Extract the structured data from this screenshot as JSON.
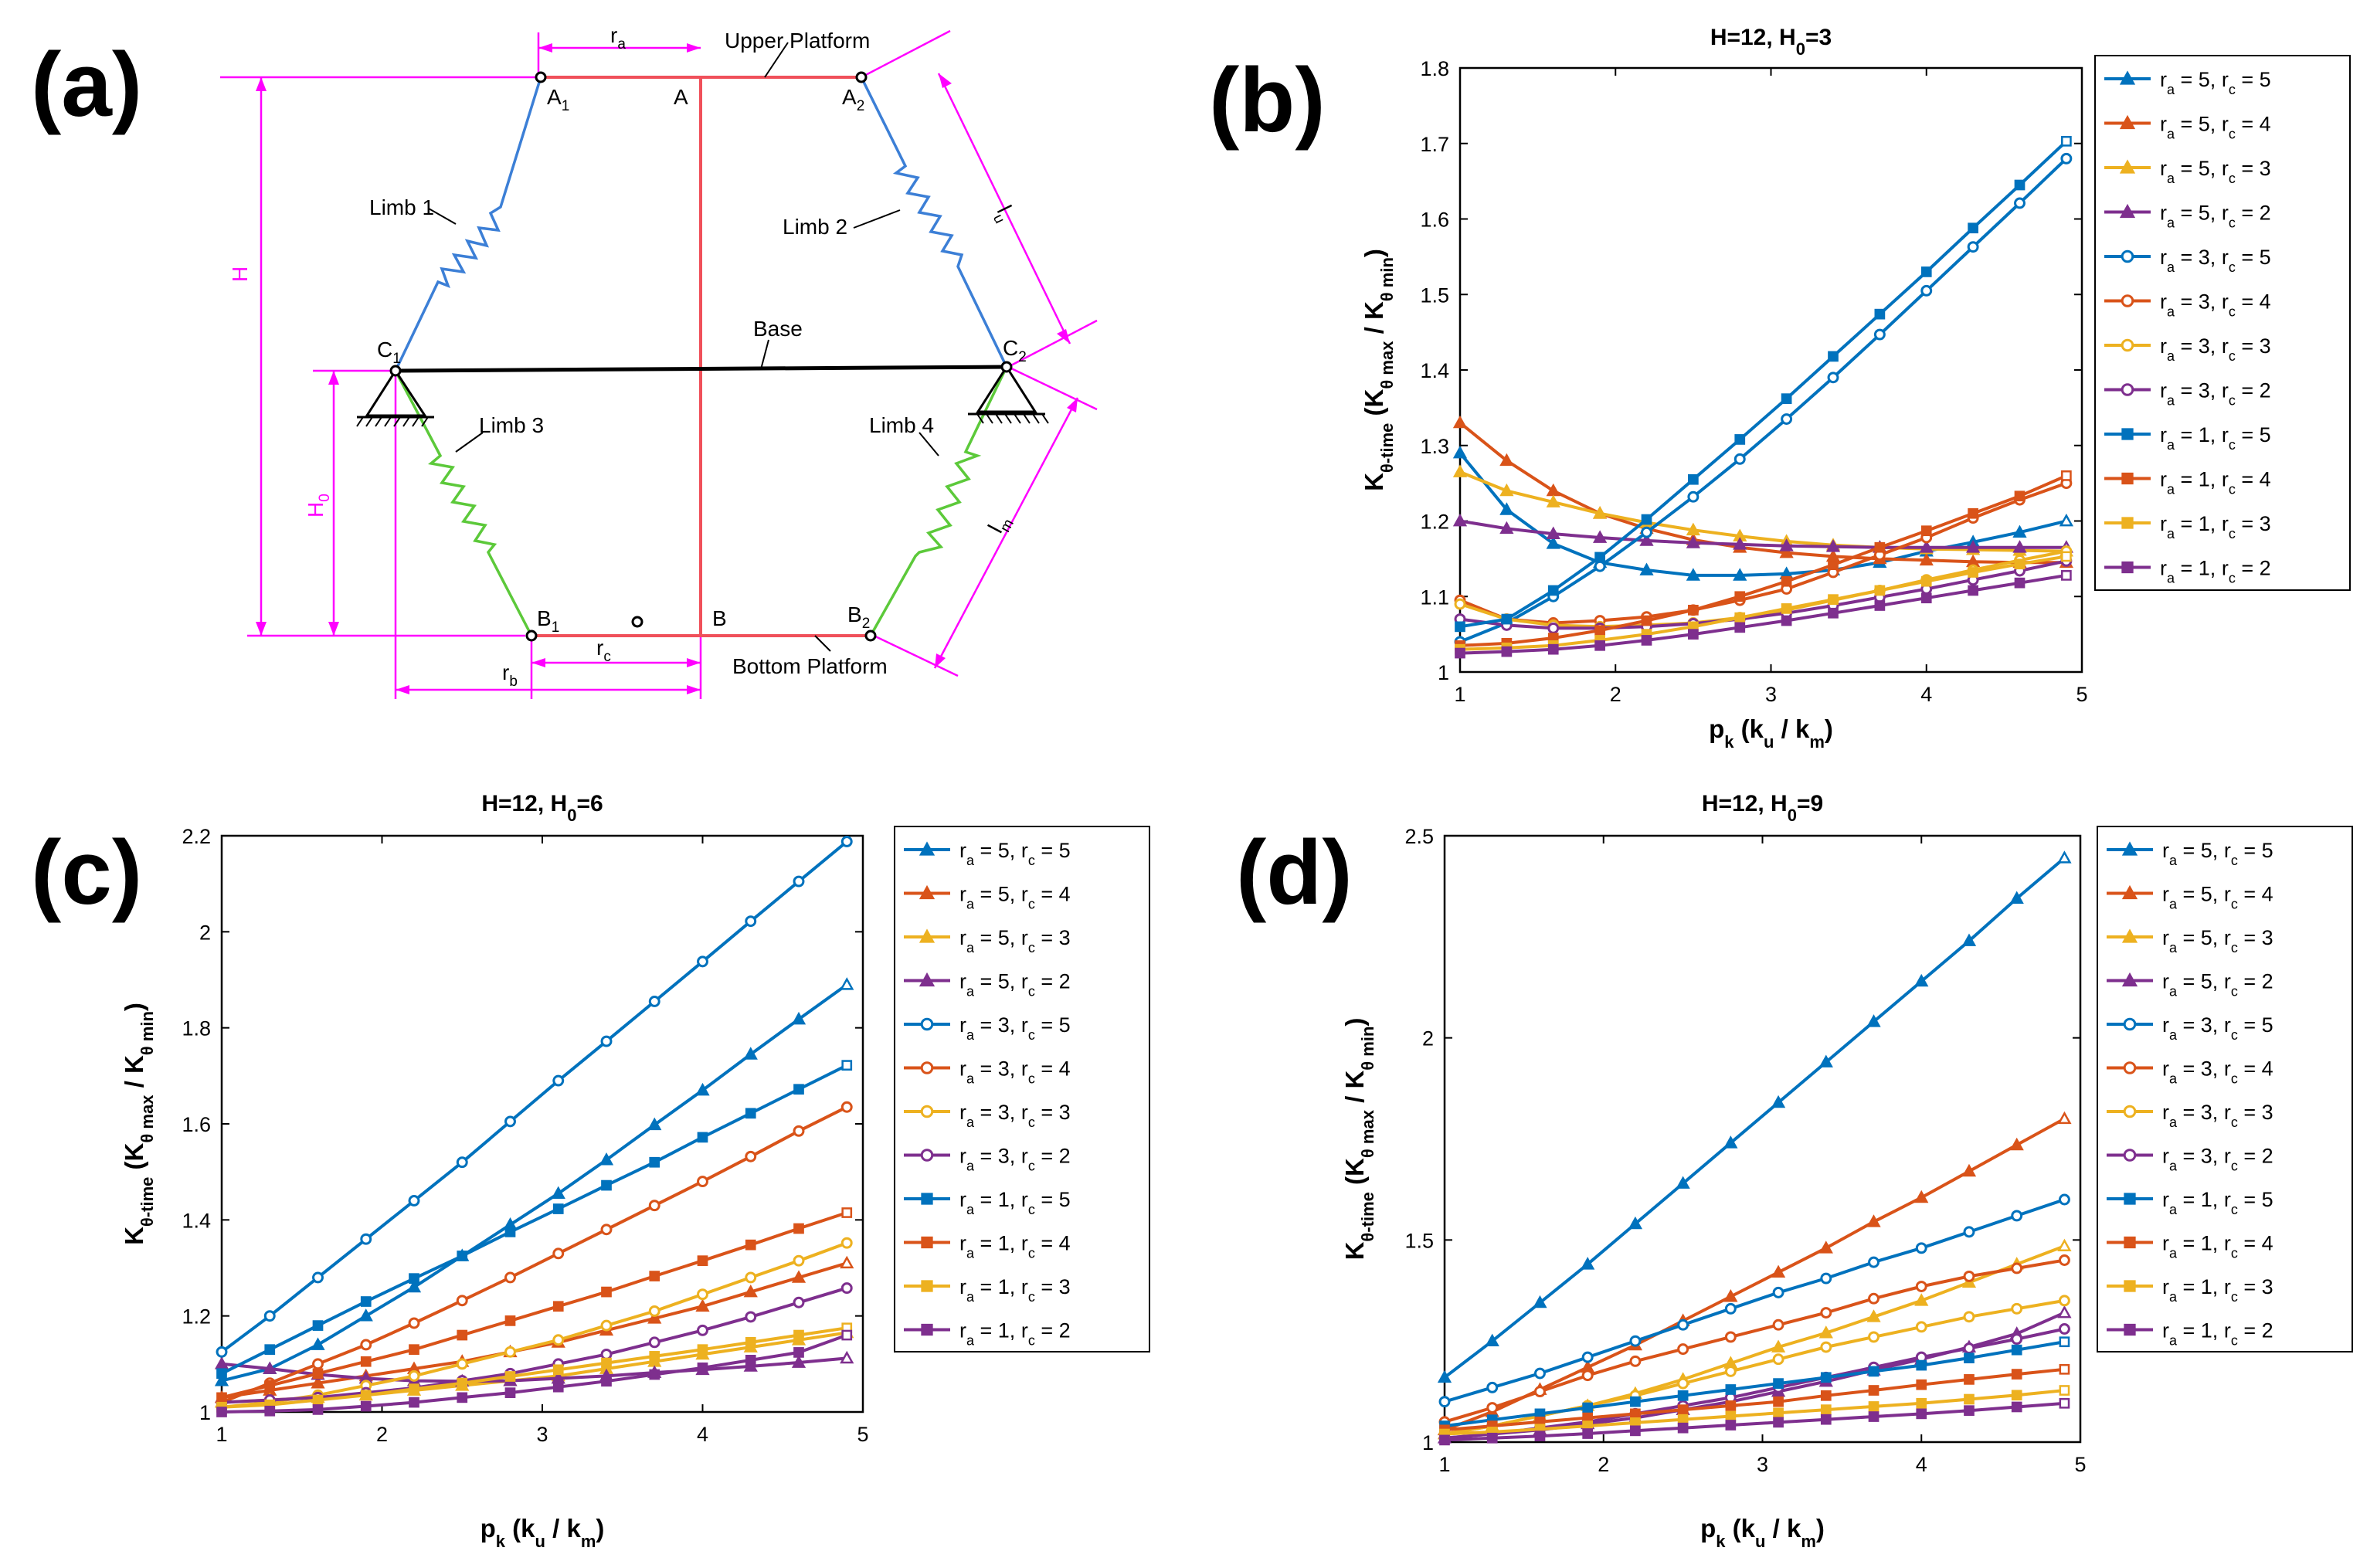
{
  "panels": {
    "a": "(a)",
    "b": "(b)",
    "c": "(c)",
    "d": "(d)"
  },
  "colors": {
    "blue": "#0072BD",
    "orange": "#D95319",
    "yellow": "#EDB120",
    "purple": "#7E2F8E",
    "magenta": "#FF00FF",
    "red": "#F0505A",
    "limb_blue": "#3C7FD6",
    "limb_green": "#5CC93A"
  },
  "diagram": {
    "labels": {
      "upper_platform": "Upper Platform",
      "bottom_platform": "Bottom Platform",
      "base": "Base",
      "limb1": "Limb 1",
      "limb2": "Limb 2",
      "limb3": "Limb 3",
      "limb4": "Limb 4",
      "A": "A",
      "B": "B",
      "A1": "A",
      "A1_sub": "1",
      "A2": "A",
      "A2_sub": "2",
      "B1": "B",
      "B1_sub": "1",
      "B2": "B",
      "B2_sub": "2",
      "C1": "C",
      "C1_sub": "1",
      "C2": "C",
      "C2_sub": "2",
      "H": "H",
      "H0": "H",
      "H0_sub": "0",
      "ra": "r",
      "ra_sub": "a",
      "rb": "r",
      "rb_sub": "b",
      "rc": "r",
      "rc_sub": "c",
      "lu": "l",
      "lu_sub": "u",
      "lm": "l",
      "lm_sub": "m"
    }
  },
  "axes_text": {
    "xlabel_main": "p",
    "xlabel_sub": "k",
    "xlabel_rest": " (k",
    "xlabel_sub2": "u",
    "xlabel_mid": " / k",
    "xlabel_sub3": "m",
    "xlabel_end": ")",
    "ylabel_main": "K",
    "ylabel_sub": "θ-time",
    "ylabel_mid": " (K",
    "ylabel_sub2": "θ max",
    "ylabel_mid2": " / K",
    "ylabel_sub3": "θ min",
    "ylabel_end": ")"
  },
  "legend": [
    {
      "ra": "5",
      "rc": "5",
      "color": "blue",
      "marker": "triangle"
    },
    {
      "ra": "5",
      "rc": "4",
      "color": "orange",
      "marker": "triangle"
    },
    {
      "ra": "5",
      "rc": "3",
      "color": "yellow",
      "marker": "triangle"
    },
    {
      "ra": "5",
      "rc": "2",
      "color": "purple",
      "marker": "triangle"
    },
    {
      "ra": "3",
      "rc": "5",
      "color": "blue",
      "marker": "circle"
    },
    {
      "ra": "3",
      "rc": "4",
      "color": "orange",
      "marker": "circle"
    },
    {
      "ra": "3",
      "rc": "3",
      "color": "yellow",
      "marker": "circle"
    },
    {
      "ra": "3",
      "rc": "2",
      "color": "purple",
      "marker": "circle"
    },
    {
      "ra": "1",
      "rc": "5",
      "color": "blue",
      "marker": "square"
    },
    {
      "ra": "1",
      "rc": "4",
      "color": "orange",
      "marker": "square"
    },
    {
      "ra": "1",
      "rc": "3",
      "color": "yellow",
      "marker": "square"
    },
    {
      "ra": "1",
      "rc": "2",
      "color": "purple",
      "marker": "square"
    }
  ],
  "legend_text": {
    "ra": "r",
    "ra_sub": "a",
    "eq1": " = ",
    "sep": ", ",
    "rc": "r",
    "rc_sub": "c",
    "eq2": " = "
  },
  "chart_data": [
    {
      "id": "b",
      "type": "line",
      "title_main": "H=12, H",
      "title_sub": "0",
      "title_end": "=3",
      "x": [
        1.0,
        1.3,
        1.6,
        1.9,
        2.2,
        2.5,
        2.8,
        3.1,
        3.4,
        3.7,
        4.0,
        4.3,
        4.6,
        4.9
      ],
      "xlim": [
        1,
        5
      ],
      "ylim": [
        1,
        1.8
      ],
      "xticks": [
        "1",
        "2",
        "3",
        "4",
        "5"
      ],
      "yticks": [
        "1",
        "1.1",
        "1.2",
        "1.3",
        "1.4",
        "1.5",
        "1.6",
        "1.7",
        "1.8"
      ],
      "ytick_values": [
        1,
        1.1,
        1.2,
        1.3,
        1.4,
        1.5,
        1.6,
        1.7,
        1.8
      ],
      "series": [
        {
          "name": "r_a = 5, r_c = 5",
          "values": [
            1.29,
            1.215,
            1.17,
            1.145,
            1.135,
            1.128,
            1.128,
            1.13,
            1.135,
            1.145,
            1.16,
            1.172,
            1.185,
            1.2
          ]
        },
        {
          "name": "r_a = 5, r_c = 4",
          "values": [
            1.33,
            1.28,
            1.24,
            1.21,
            1.19,
            1.175,
            1.165,
            1.158,
            1.153,
            1.15,
            1.148,
            1.146,
            1.145,
            1.145
          ]
        },
        {
          "name": "r_a = 5, r_c = 3",
          "values": [
            1.265,
            1.24,
            1.225,
            1.21,
            1.198,
            1.188,
            1.18,
            1.173,
            1.168,
            1.165,
            1.163,
            1.162,
            1.161,
            1.16
          ]
        },
        {
          "name": "r_a = 5, r_c = 2",
          "values": [
            1.2,
            1.19,
            1.183,
            1.178,
            1.174,
            1.171,
            1.169,
            1.167,
            1.166,
            1.165,
            1.165,
            1.165,
            1.165,
            1.165
          ]
        },
        {
          "name": "r_a = 3, r_c = 5",
          "values": [
            1.04,
            1.065,
            1.1,
            1.14,
            1.185,
            1.232,
            1.282,
            1.335,
            1.39,
            1.447,
            1.505,
            1.563,
            1.621,
            1.68
          ]
        },
        {
          "name": "r_a = 3, r_c = 4",
          "values": [
            1.095,
            1.07,
            1.065,
            1.068,
            1.073,
            1.082,
            1.095,
            1.11,
            1.132,
            1.155,
            1.178,
            1.204,
            1.228,
            1.25
          ]
        },
        {
          "name": "r_a = 3, r_c = 3",
          "values": [
            1.09,
            1.07,
            1.062,
            1.06,
            1.062,
            1.065,
            1.072,
            1.082,
            1.095,
            1.108,
            1.122,
            1.135,
            1.148,
            1.16
          ]
        },
        {
          "name": "r_a = 3, r_c = 2",
          "values": [
            1.07,
            1.062,
            1.058,
            1.058,
            1.06,
            1.064,
            1.07,
            1.078,
            1.088,
            1.099,
            1.11,
            1.122,
            1.134,
            1.147
          ]
        },
        {
          "name": "r_a = 1, r_c = 5",
          "values": [
            1.06,
            1.07,
            1.108,
            1.152,
            1.202,
            1.255,
            1.308,
            1.362,
            1.418,
            1.474,
            1.53,
            1.588,
            1.645,
            1.703
          ]
        },
        {
          "name": "r_a = 1, r_c = 4",
          "values": [
            1.035,
            1.038,
            1.045,
            1.055,
            1.068,
            1.082,
            1.1,
            1.12,
            1.142,
            1.165,
            1.187,
            1.21,
            1.233,
            1.26
          ]
        },
        {
          "name": "r_a = 1, r_c = 3",
          "values": [
            1.03,
            1.032,
            1.035,
            1.042,
            1.05,
            1.06,
            1.072,
            1.084,
            1.096,
            1.108,
            1.12,
            1.132,
            1.143,
            1.153
          ]
        },
        {
          "name": "r_a = 1, r_c = 2",
          "values": [
            1.025,
            1.027,
            1.03,
            1.035,
            1.042,
            1.05,
            1.059,
            1.068,
            1.078,
            1.088,
            1.098,
            1.108,
            1.118,
            1.128
          ]
        }
      ]
    },
    {
      "id": "c",
      "type": "line",
      "title_main": "H=12, H",
      "title_sub": "0",
      "title_end": "=6",
      "x": [
        1.0,
        1.3,
        1.6,
        1.9,
        2.2,
        2.5,
        2.8,
        3.1,
        3.4,
        3.7,
        4.0,
        4.3,
        4.6,
        4.9
      ],
      "xlim": [
        1,
        5
      ],
      "ylim": [
        1,
        2.2
      ],
      "xticks": [
        "1",
        "2",
        "3",
        "4",
        "5"
      ],
      "yticks": [
        "1",
        "1.2",
        "1.4",
        "1.6",
        "1.8",
        "2",
        "2.2"
      ],
      "ytick_values": [
        1,
        1.2,
        1.4,
        1.6,
        1.8,
        2.0,
        2.2
      ],
      "series": [
        {
          "name": "r_a = 5, r_c = 5",
          "values": [
            1.065,
            1.09,
            1.14,
            1.2,
            1.26,
            1.325,
            1.39,
            1.455,
            1.525,
            1.598,
            1.67,
            1.745,
            1.818,
            1.89
          ]
        },
        {
          "name": "r_a = 5, r_c = 4",
          "values": [
            1.03,
            1.045,
            1.06,
            1.075,
            1.09,
            1.105,
            1.125,
            1.145,
            1.17,
            1.195,
            1.22,
            1.25,
            1.28,
            1.31
          ]
        },
        {
          "name": "r_a = 5, r_c = 3",
          "values": [
            1.02,
            1.025,
            1.03,
            1.035,
            1.045,
            1.055,
            1.065,
            1.075,
            1.09,
            1.105,
            1.12,
            1.135,
            1.15,
            1.165
          ]
        },
        {
          "name": "r_a = 5, r_c = 2",
          "values": [
            1.1,
            1.09,
            1.078,
            1.07,
            1.065,
            1.064,
            1.065,
            1.07,
            1.075,
            1.082,
            1.088,
            1.095,
            1.103,
            1.112
          ]
        },
        {
          "name": "r_a = 3, r_c = 5",
          "values": [
            1.125,
            1.2,
            1.28,
            1.36,
            1.44,
            1.52,
            1.605,
            1.69,
            1.772,
            1.855,
            1.938,
            2.022,
            2.105,
            2.188
          ]
        },
        {
          "name": "r_a = 3, r_c = 4",
          "values": [
            1.02,
            1.06,
            1.1,
            1.14,
            1.185,
            1.232,
            1.28,
            1.33,
            1.38,
            1.43,
            1.48,
            1.532,
            1.585,
            1.635
          ]
        },
        {
          "name": "r_a = 3, r_c = 3",
          "values": [
            1.01,
            1.02,
            1.035,
            1.055,
            1.075,
            1.1,
            1.125,
            1.15,
            1.18,
            1.21,
            1.245,
            1.28,
            1.315,
            1.352
          ]
        },
        {
          "name": "r_a = 3, r_c = 2",
          "values": [
            1.02,
            1.025,
            1.03,
            1.04,
            1.05,
            1.065,
            1.08,
            1.1,
            1.12,
            1.145,
            1.17,
            1.198,
            1.228,
            1.258
          ]
        },
        {
          "name": "r_a = 1, r_c = 5",
          "values": [
            1.08,
            1.13,
            1.18,
            1.23,
            1.278,
            1.325,
            1.375,
            1.423,
            1.472,
            1.52,
            1.572,
            1.622,
            1.672,
            1.722
          ]
        },
        {
          "name": "r_a = 1, r_c = 4",
          "values": [
            1.03,
            1.055,
            1.08,
            1.105,
            1.13,
            1.16,
            1.19,
            1.22,
            1.25,
            1.283,
            1.315,
            1.348,
            1.382,
            1.415
          ]
        },
        {
          "name": "r_a = 1, r_c = 3",
          "values": [
            1.01,
            1.015,
            1.025,
            1.035,
            1.048,
            1.06,
            1.074,
            1.088,
            1.102,
            1.116,
            1.13,
            1.145,
            1.16,
            1.175
          ]
        },
        {
          "name": "r_a = 1, r_c = 2",
          "values": [
            1.0,
            1.002,
            1.005,
            1.012,
            1.02,
            1.03,
            1.04,
            1.052,
            1.064,
            1.078,
            1.092,
            1.108,
            1.124,
            1.16
          ]
        }
      ]
    },
    {
      "id": "d",
      "type": "line",
      "title_main": "H=12, H",
      "title_sub": "0",
      "title_end": "=9",
      "x": [
        1.0,
        1.3,
        1.6,
        1.9,
        2.2,
        2.5,
        2.8,
        3.1,
        3.4,
        3.7,
        4.0,
        4.3,
        4.6,
        4.9
      ],
      "xlim": [
        1,
        5
      ],
      "ylim": [
        1,
        2.5
      ],
      "xticks": [
        "1",
        "2",
        "3",
        "4",
        "5"
      ],
      "yticks": [
        "1",
        "1.5",
        "2",
        "2.5"
      ],
      "ytick_values": [
        1,
        1.5,
        2.0,
        2.5
      ],
      "series": [
        {
          "name": "r_a = 5, r_c = 5",
          "values": [
            1.16,
            1.25,
            1.345,
            1.44,
            1.54,
            1.64,
            1.74,
            1.84,
            1.94,
            2.04,
            2.14,
            2.24,
            2.345,
            2.445
          ]
        },
        {
          "name": "r_a = 5, r_c = 4",
          "values": [
            1.03,
            1.075,
            1.13,
            1.185,
            1.24,
            1.3,
            1.36,
            1.42,
            1.48,
            1.545,
            1.605,
            1.67,
            1.735,
            1.8
          ]
        },
        {
          "name": "r_a = 5, r_c = 3",
          "values": [
            1.02,
            1.04,
            1.065,
            1.09,
            1.12,
            1.155,
            1.195,
            1.235,
            1.27,
            1.31,
            1.35,
            1.395,
            1.44,
            1.485
          ]
        },
        {
          "name": "r_a = 5, r_c = 2",
          "values": [
            1.01,
            1.02,
            1.03,
            1.045,
            1.06,
            1.08,
            1.1,
            1.125,
            1.15,
            1.178,
            1.205,
            1.235,
            1.268,
            1.32
          ]
        },
        {
          "name": "r_a = 3, r_c = 5",
          "values": [
            1.1,
            1.135,
            1.17,
            1.21,
            1.25,
            1.29,
            1.33,
            1.37,
            1.405,
            1.445,
            1.48,
            1.52,
            1.56,
            1.6
          ]
        },
        {
          "name": "r_a = 3, r_c = 4",
          "values": [
            1.05,
            1.085,
            1.125,
            1.165,
            1.2,
            1.23,
            1.26,
            1.29,
            1.32,
            1.355,
            1.385,
            1.41,
            1.43,
            1.45
          ]
        },
        {
          "name": "r_a = 3, r_c = 3",
          "values": [
            1.02,
            1.04,
            1.065,
            1.09,
            1.115,
            1.145,
            1.175,
            1.205,
            1.235,
            1.26,
            1.285,
            1.31,
            1.33,
            1.35
          ]
        },
        {
          "name": "r_a = 3, r_c = 2",
          "values": [
            1.01,
            1.02,
            1.035,
            1.05,
            1.07,
            1.09,
            1.11,
            1.135,
            1.16,
            1.185,
            1.21,
            1.232,
            1.255,
            1.28
          ]
        },
        {
          "name": "r_a = 1, r_c = 5",
          "values": [
            1.04,
            1.055,
            1.07,
            1.085,
            1.1,
            1.115,
            1.13,
            1.145,
            1.16,
            1.175,
            1.19,
            1.208,
            1.228,
            1.248
          ]
        },
        {
          "name": "r_a = 1, r_c = 4",
          "values": [
            1.03,
            1.04,
            1.05,
            1.06,
            1.07,
            1.08,
            1.09,
            1.1,
            1.115,
            1.128,
            1.142,
            1.155,
            1.168,
            1.18
          ]
        },
        {
          "name": "r_a = 1, r_c = 3",
          "values": [
            1.02,
            1.025,
            1.032,
            1.04,
            1.048,
            1.056,
            1.064,
            1.072,
            1.08,
            1.088,
            1.096,
            1.106,
            1.116,
            1.128
          ]
        },
        {
          "name": "r_a = 1, r_c = 2",
          "values": [
            1.005,
            1.01,
            1.015,
            1.021,
            1.028,
            1.035,
            1.042,
            1.049,
            1.056,
            1.063,
            1.07,
            1.078,
            1.087,
            1.096
          ]
        }
      ]
    }
  ]
}
